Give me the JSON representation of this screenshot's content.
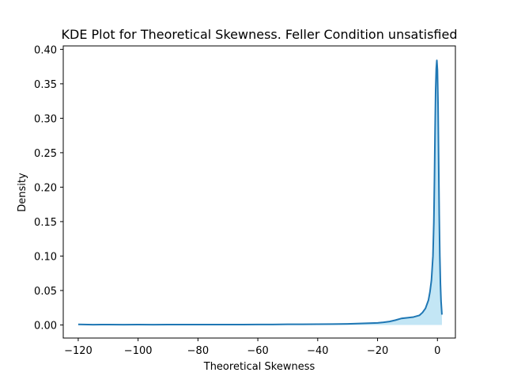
{
  "chart_data": {
    "type": "area",
    "title": "KDE Plot for Theoretical Skewness. Feller Condition unsatisfied",
    "xlabel": "Theoretical Skewness",
    "ylabel": "Density",
    "xlim": [
      -125,
      6
    ],
    "ylim": [
      -0.019,
      0.405
    ],
    "xticks": [
      -120,
      -100,
      -80,
      -60,
      -40,
      -20,
      0
    ],
    "xtick_labels": [
      "−120",
      "−100",
      "−80",
      "−60",
      "−40",
      "−20",
      "0"
    ],
    "yticks": [
      0.0,
      0.05,
      0.1,
      0.15,
      0.2,
      0.25,
      0.3,
      0.35,
      0.4
    ],
    "ytick_labels": [
      "0.00",
      "0.05",
      "0.10",
      "0.15",
      "0.20",
      "0.25",
      "0.30",
      "0.35",
      "0.40"
    ],
    "grid": false,
    "line_color": "#1f77b4",
    "fill_color": "#87ceeb",
    "series": [
      {
        "x": [
          -120,
          -115,
          -110,
          -105,
          -100,
          -95,
          -90,
          -85,
          -80,
          -75,
          -70,
          -65,
          -60,
          -55,
          -50,
          -45,
          -40,
          -35,
          -30,
          -25,
          -20,
          -18,
          -16,
          -14,
          -12,
          -10,
          -8,
          -6,
          -5,
          -4,
          -3,
          -2.5,
          -2,
          -1.5,
          -1.2,
          -1,
          -0.8,
          -0.6,
          -0.4,
          -0.2,
          0,
          0.2,
          0.4,
          0.6,
          0.8,
          1.0,
          1.2,
          1.5
        ],
        "y": [
          0.0008,
          0.0004,
          0.0006,
          0.0004,
          0.0006,
          0.0004,
          0.0006,
          0.0005,
          0.0006,
          0.0005,
          0.0006,
          0.0006,
          0.0007,
          0.0007,
          0.0009,
          0.0009,
          0.0011,
          0.0013,
          0.0016,
          0.0022,
          0.003,
          0.0038,
          0.005,
          0.007,
          0.0095,
          0.0105,
          0.0115,
          0.014,
          0.018,
          0.024,
          0.036,
          0.048,
          0.065,
          0.1,
          0.15,
          0.21,
          0.28,
          0.34,
          0.372,
          0.384,
          0.37,
          0.32,
          0.24,
          0.16,
          0.1,
          0.06,
          0.035,
          0.015
        ]
      }
    ]
  }
}
